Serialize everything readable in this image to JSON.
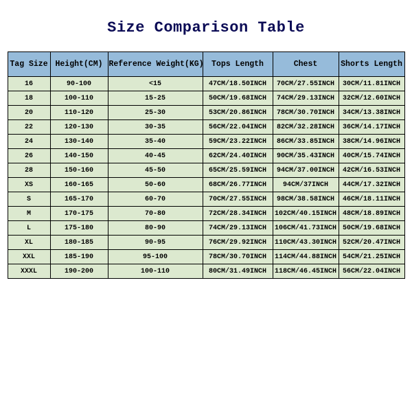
{
  "title": "Size Comparison Table",
  "table": {
    "header_bg": "#96bbda",
    "row_bg": "#dce9cf",
    "border_color": "#000000",
    "columns": [
      "Tag Size",
      "Height(CM)",
      "Reference Weight(KG)",
      "Tops Length",
      "Chest",
      "Shorts Length"
    ],
    "rows": [
      [
        "16",
        "90-100",
        "<15",
        "47CM/18.50INCH",
        "70CM/27.55INCH",
        "30CM/11.81INCH"
      ],
      [
        "18",
        "100-110",
        "15-25",
        "50CM/19.68INCH",
        "74CM/29.13INCH",
        "32CM/12.60INCH"
      ],
      [
        "20",
        "110-120",
        "25-30",
        "53CM/20.86INCH",
        "78CM/30.70INCH",
        "34CM/13.38INCH"
      ],
      [
        "22",
        "120-130",
        "30-35",
        "56CM/22.04INCH",
        "82CM/32.28INCH",
        "36CM/14.17INCH"
      ],
      [
        "24",
        "130-140",
        "35-40",
        "59CM/23.22INCH",
        "86CM/33.85INCH",
        "38CM/14.96INCH"
      ],
      [
        "26",
        "140-150",
        "40-45",
        "62CM/24.40INCH",
        "90CM/35.43INCH",
        "40CM/15.74INCH"
      ],
      [
        "28",
        "150-160",
        "45-50",
        "65CM/25.59INCH",
        "94CM/37.00INCH",
        "42CM/16.53INCH"
      ],
      [
        "XS",
        "160-165",
        "50-60",
        "68CM/26.77INCH",
        "94CM/37INCH",
        "44CM/17.32INCH"
      ],
      [
        "S",
        "165-170",
        "60-70",
        "70CM/27.55INCH",
        "98CM/38.58INCH",
        "46CM/18.11INCH"
      ],
      [
        "M",
        "170-175",
        "70-80",
        "72CM/28.34INCH",
        "102CM/40.15INCH",
        "48CM/18.89INCH"
      ],
      [
        "L",
        "175-180",
        "80-90",
        "74CM/29.13INCH",
        "106CM/41.73INCH",
        "50CM/19.68INCH"
      ],
      [
        "XL",
        "180-185",
        "90-95",
        "76CM/29.92INCH",
        "110CM/43.30INCH",
        "52CM/20.47INCH"
      ],
      [
        "XXL",
        "185-190",
        "95-100",
        "78CM/30.70INCH",
        "114CM/44.88INCH",
        "54CM/21.25INCH"
      ],
      [
        "XXXL",
        "190-200",
        "100-110",
        "80CM/31.49INCH",
        "118CM/46.45INCH",
        "56CM/22.04INCH"
      ]
    ]
  }
}
